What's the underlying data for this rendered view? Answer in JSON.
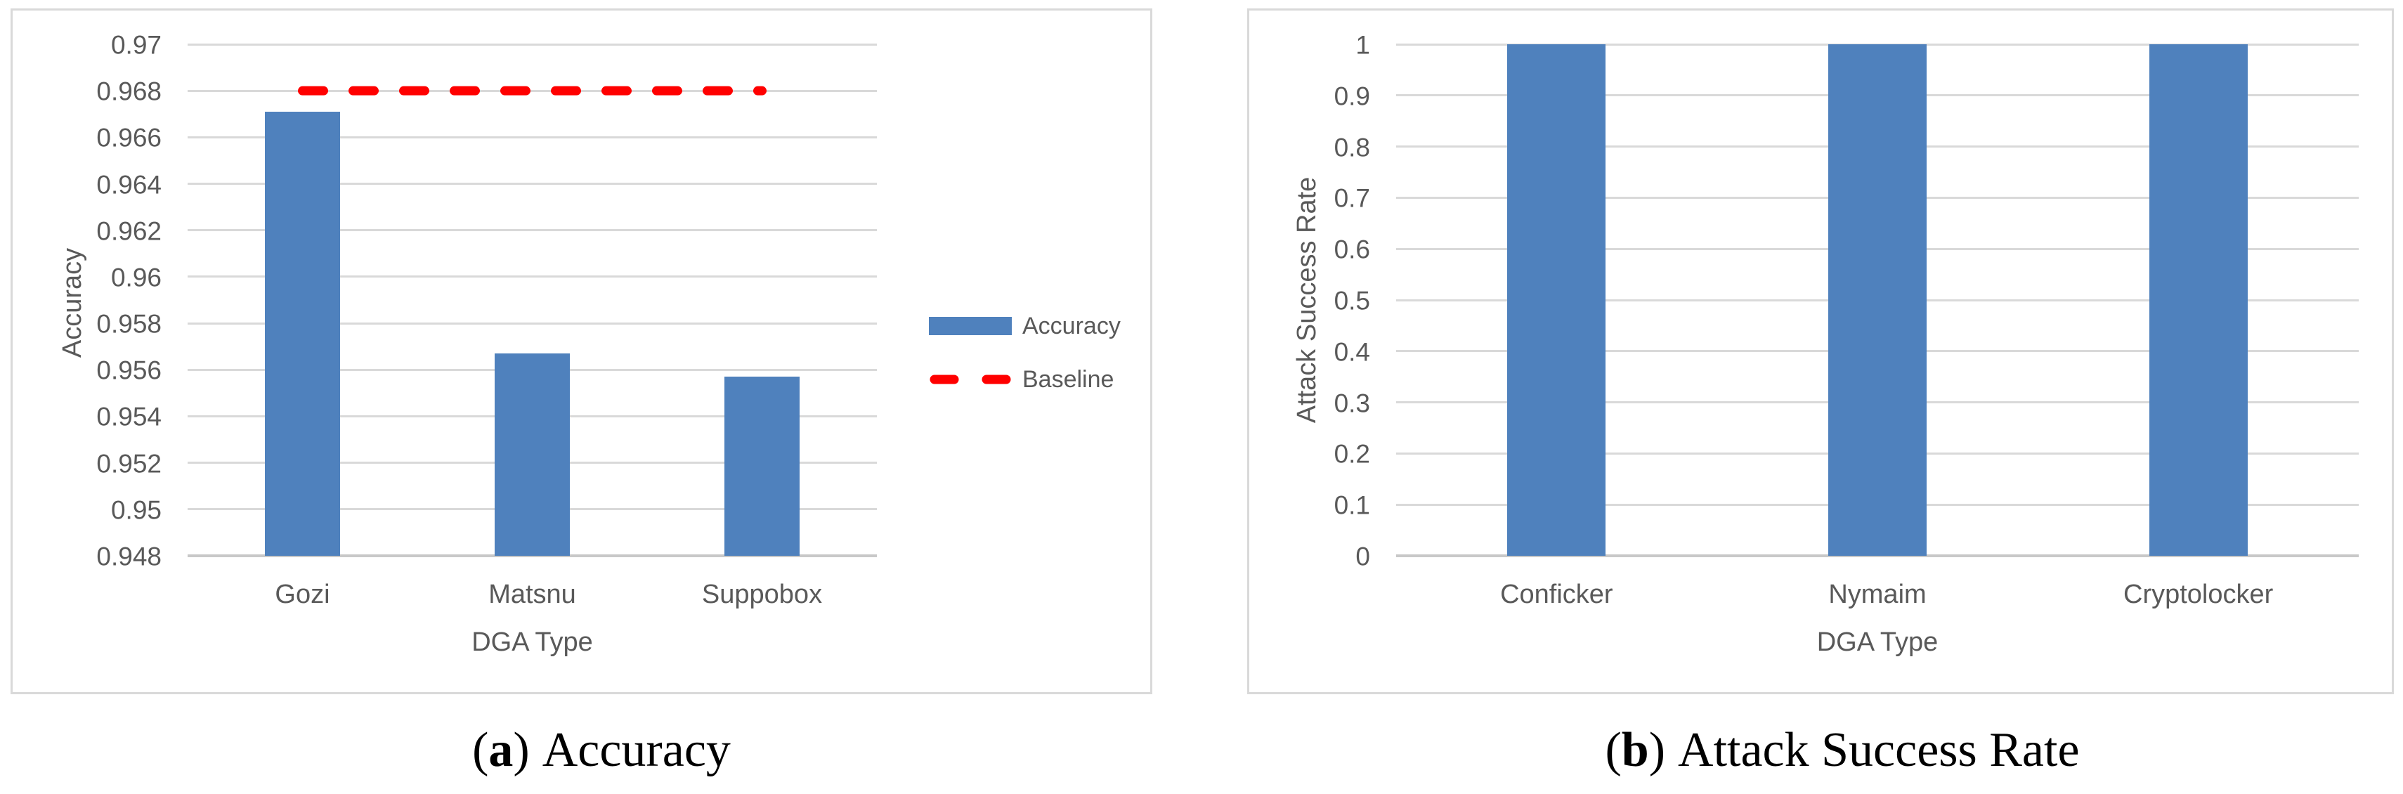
{
  "figure": {
    "captions": [
      {
        "open": "(",
        "letter": "a",
        "close": ")",
        "text": "Accuracy"
      },
      {
        "open": "(",
        "letter": "b",
        "close": ")",
        "text": "Attack Success Rate"
      }
    ]
  },
  "colors": {
    "bar_blue": "#4F81BD",
    "baseline_red": "#FF0000",
    "grid": "#D9D9D9",
    "axis_line": "#C8C8C8",
    "chart_text": "#595959",
    "panel_border": "#D9D9D9",
    "caption_text": "#000000",
    "background": "#FFFFFF"
  },
  "chart_data": [
    {
      "type": "bar",
      "title": "",
      "categories": [
        "Gozi",
        "Matsnu",
        "Suppobox"
      ],
      "series": [
        {
          "name": "Accuracy",
          "type": "bar",
          "color": "#4F81BD",
          "values": [
            0.9671,
            0.9567,
            0.9557
          ]
        },
        {
          "name": "Baseline",
          "type": "dashed-line",
          "color": "#FF0000",
          "values": [
            0.968,
            0.968,
            0.968
          ]
        }
      ],
      "xlabel": "DGA Type",
      "ylabel": "Accuracy",
      "ylim": [
        0.948,
        0.97
      ],
      "ytick_labels": [
        "0.948",
        "0.95",
        "0.952",
        "0.954",
        "0.956",
        "0.958",
        "0.96",
        "0.962",
        "0.964",
        "0.966",
        "0.968",
        "0.97"
      ],
      "grid": true,
      "legend_position": "right"
    },
    {
      "type": "bar",
      "title": "",
      "categories": [
        "Conficker",
        "Nymaim",
        "Cryptolocker"
      ],
      "series": [
        {
          "name": "Attack Success Rate",
          "type": "bar",
          "color": "#4F81BD",
          "values": [
            1,
            1,
            1
          ]
        }
      ],
      "xlabel": "DGA Type",
      "ylabel": "Attack Success Rate",
      "ylim": [
        0,
        1
      ],
      "ytick_labels": [
        "0",
        "0.1",
        "0.2",
        "0.3",
        "0.4",
        "0.5",
        "0.6",
        "0.7",
        "0.8",
        "0.9",
        "1"
      ],
      "grid": true,
      "legend_position": "none"
    }
  ]
}
